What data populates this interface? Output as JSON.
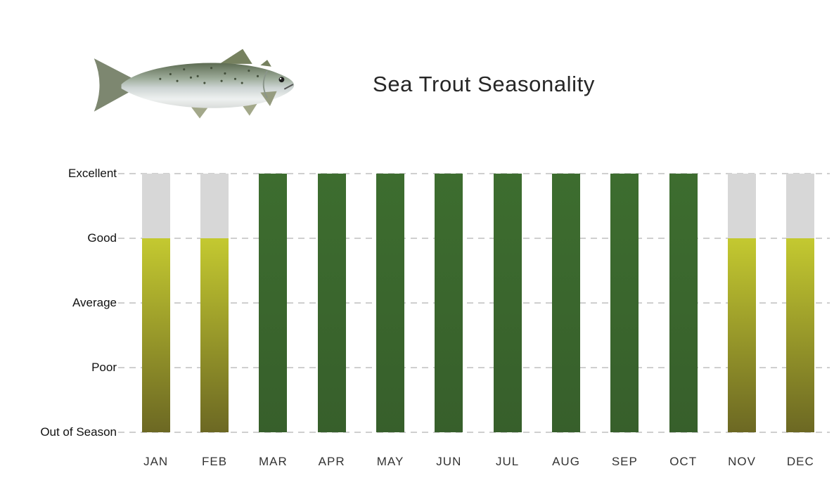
{
  "chart_data": {
    "type": "bar",
    "title": "Sea Trout Seasonality",
    "categories": [
      "JAN",
      "FEB",
      "MAR",
      "APR",
      "MAY",
      "JUN",
      "JUL",
      "AUG",
      "SEP",
      "OCT",
      "NOV",
      "DEC"
    ],
    "levels": [
      "Out of Season",
      "Poor",
      "Average",
      "Good",
      "Excellent"
    ],
    "values": [
      3,
      3,
      4,
      4,
      4,
      4,
      4,
      4,
      4,
      4,
      3,
      3
    ],
    "value_labels": [
      "Good",
      "Good",
      "Excellent",
      "Excellent",
      "Excellent",
      "Excellent",
      "Excellent",
      "Excellent",
      "Excellent",
      "Excellent",
      "Good",
      "Good"
    ],
    "ymax": 4,
    "grid": "dashed-horizontal",
    "legend": "none",
    "colors": {
      "in_season_top": "#3d6d2f",
      "in_season_bottom": "#375f2b",
      "shoulder_top": "#c4c930",
      "shoulder_bottom": "#6c6823",
      "track": "#d7d7d7",
      "gridline": "#cfcfcf"
    }
  }
}
